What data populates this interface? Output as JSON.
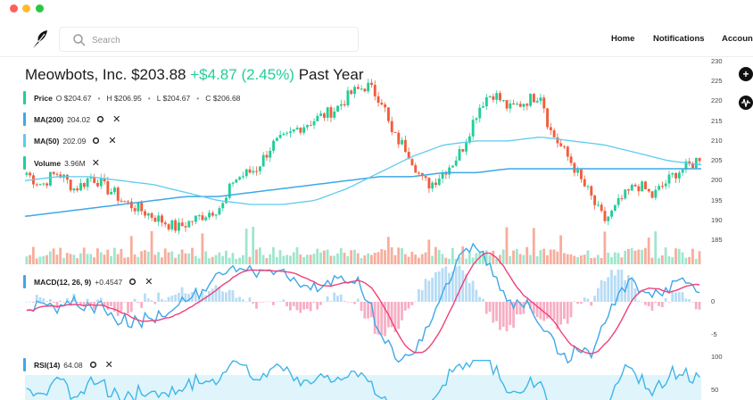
{
  "nav": {
    "search_placeholder": "Search",
    "links": [
      "Home",
      "Notifications",
      "Account"
    ]
  },
  "header": {
    "name": "Meowbots, Inc.",
    "price": "$203.88",
    "change": "+$4.87 (2.45%)",
    "period": "Past Year"
  },
  "legends": {
    "price": {
      "label": "Price",
      "o": "O $204.67",
      "h": "H $206.95",
      "l": "L $204.67",
      "c": "C $206.68"
    },
    "ma200": {
      "label": "MA(200)",
      "value": "204.02"
    },
    "ma50": {
      "label": "MA(50)",
      "value": "202.09"
    },
    "volume": {
      "label": "Volume",
      "value": "3.96M"
    },
    "macd": {
      "label": "MACD(12, 26, 9)",
      "value": "+0.4547"
    },
    "rsi": {
      "label": "RSI(14)",
      "value": "64.08"
    }
  },
  "colors": {
    "up": "#21ce99",
    "down": "#f25c3c",
    "ma200": "#3fa7e8",
    "ma50": "#5ecbee",
    "macd_signal": "#f0407a",
    "rsi_band": "#dff5fb"
  },
  "icons": [
    "logo-feather-icon",
    "search-icon",
    "gear-icon",
    "close-icon",
    "plus-icon",
    "indicator-icon"
  ],
  "chart_data": {
    "type": "candlestick",
    "price_axis": {
      "ticks": [
        230,
        225,
        220,
        215,
        210,
        205,
        200,
        195,
        190,
        185
      ],
      "range": [
        181,
        231
      ]
    },
    "macd_axis": {
      "ticks": [
        0,
        -5
      ]
    },
    "rsi_axis": {
      "ticks": [
        100,
        50
      ]
    },
    "close_path": [
      202,
      200,
      199,
      201,
      202,
      200,
      198,
      199,
      201,
      200,
      198,
      197,
      195,
      194,
      193,
      192,
      191,
      190,
      189,
      188,
      189,
      190,
      191,
      192,
      193,
      194,
      200,
      201,
      202,
      203,
      206,
      209,
      210,
      211,
      213,
      214,
      215,
      216,
      217,
      218,
      220,
      222,
      223,
      224,
      222,
      220,
      212,
      210,
      208,
      204,
      200,
      199,
      201,
      203,
      205,
      208,
      213,
      218,
      221,
      222,
      220,
      218,
      219,
      220,
      221,
      222,
      213,
      210,
      207,
      204,
      200,
      197,
      193,
      190,
      192,
      195,
      197,
      199,
      198,
      196,
      198,
      200,
      202,
      203,
      204,
      206
    ],
    "ma200_path": [
      191,
      192,
      193,
      194,
      195,
      196,
      196,
      197,
      198,
      199,
      200,
      201,
      201,
      202,
      202,
      203,
      203,
      203,
      203,
      203,
      203,
      203
    ],
    "ma50_path": [
      200,
      201,
      201,
      200,
      199,
      197,
      195,
      194,
      194,
      195,
      198,
      202,
      206,
      209,
      210,
      210,
      211,
      210,
      209,
      207,
      205,
      204
    ],
    "macd_range": [
      -7,
      6
    ],
    "rsi_range": [
      25,
      100
    ]
  }
}
